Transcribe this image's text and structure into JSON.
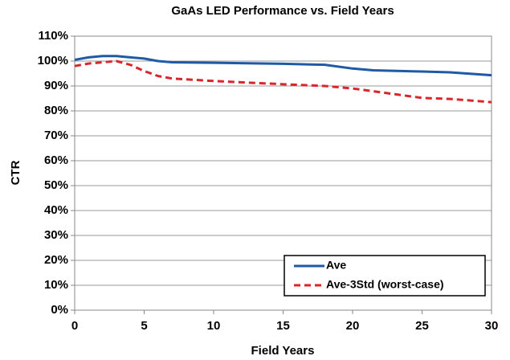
{
  "chart_data": {
    "type": "line",
    "title": "GaAs LED Performance vs. Field Years",
    "x_label": "Field Years",
    "y_label": "CTR",
    "xlim": [
      0,
      30
    ],
    "xticks": [
      0,
      5,
      10,
      15,
      20,
      25,
      30
    ],
    "ylim": [
      0,
      110
    ],
    "yticks": [
      {
        "value": 0,
        "label": "0%"
      },
      {
        "value": 10,
        "label": "10%"
      },
      {
        "value": 20,
        "label": "20%"
      },
      {
        "value": 30,
        "label": "30%"
      },
      {
        "value": 40,
        "label": "40%"
      },
      {
        "value": 50,
        "label": "50%"
      },
      {
        "value": 60,
        "label": "60%"
      },
      {
        "value": 70,
        "label": "70%"
      },
      {
        "value": 80,
        "label": "80%"
      },
      {
        "value": 90,
        "label": "90%"
      },
      {
        "value": 100,
        "label": "100%"
      },
      {
        "value": 110,
        "label": "110%"
      }
    ],
    "grid": true,
    "legend": "lower right",
    "series": [
      {
        "name": "Ave",
        "color": "#1f5aa6",
        "dashed": false,
        "x": [
          0,
          1,
          2,
          3,
          4,
          5,
          6,
          7,
          10,
          15,
          18,
          20,
          21.5,
          25,
          27,
          30
        ],
        "values": [
          100.5,
          101.5,
          102,
          102,
          101.5,
          101,
          100,
          99.5,
          99.3,
          98.9,
          98.5,
          97,
          96.3,
          95.8,
          95.5,
          94.3
        ]
      },
      {
        "name": "Ave-3Std (worst-case)",
        "color": "#d9262b",
        "dashed": true,
        "x": [
          0,
          1,
          2,
          3,
          4,
          5,
          6,
          7,
          10,
          15,
          18,
          20,
          22,
          25,
          27,
          30
        ],
        "values": [
          98,
          99,
          99.5,
          100,
          98.5,
          96,
          94,
          93,
          92,
          90.7,
          90,
          89,
          87.5,
          85.2,
          84.8,
          83.5
        ]
      }
    ]
  }
}
